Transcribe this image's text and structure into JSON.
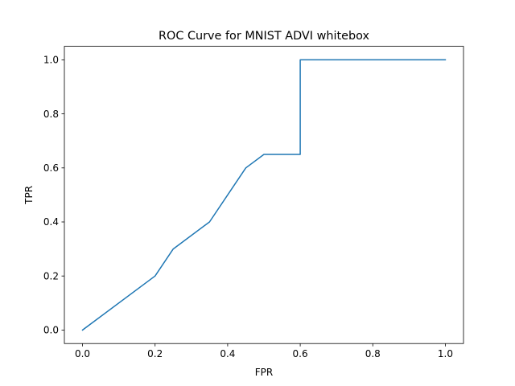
{
  "chart_data": {
    "type": "line",
    "title": "ROC Curve for MNIST ADVI whitebox",
    "xlabel": "FPR",
    "ylabel": "TPR",
    "xlim": [
      -0.05,
      1.05
    ],
    "ylim": [
      -0.05,
      1.05
    ],
    "xticks": [
      "0.0",
      "0.2",
      "0.4",
      "0.6",
      "0.8",
      "1.0"
    ],
    "yticks": [
      "0.0",
      "0.2",
      "0.4",
      "0.6",
      "0.8",
      "1.0"
    ],
    "grid": false,
    "series": [
      {
        "color": "#1f77b4",
        "x": [
          0.0,
          0.2,
          0.25,
          0.35,
          0.45,
          0.5,
          0.6,
          0.6,
          1.0
        ],
        "y": [
          0.0,
          0.2,
          0.3,
          0.4,
          0.6,
          0.65,
          0.65,
          1.0,
          1.0
        ]
      }
    ]
  }
}
